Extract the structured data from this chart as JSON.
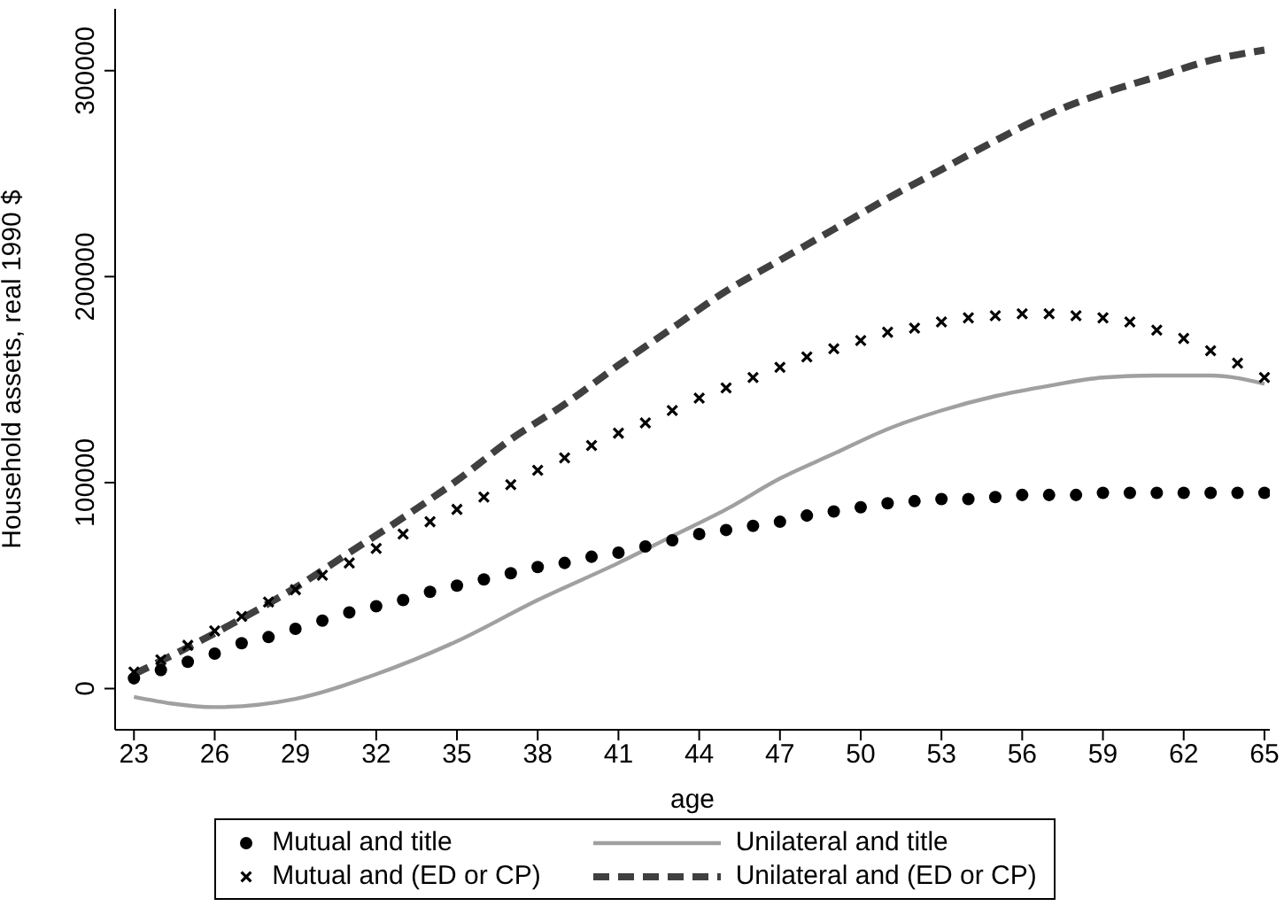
{
  "chart_data": {
    "type": "scatter",
    "xlabel": "age",
    "ylabel": "Household assets, real 1990 $",
    "xlim": [
      22.3,
      65.2
    ],
    "xticks": [
      23,
      26,
      29,
      32,
      35,
      38,
      41,
      44,
      47,
      50,
      53,
      56,
      59,
      62,
      65
    ],
    "ylim": [
      -20000,
      330000
    ],
    "yticks": [
      0,
      100000,
      200000,
      300000
    ],
    "grid": false,
    "legend": "bottom",
    "series": [
      {
        "name": "Mutual and title",
        "marker": "circle",
        "color": "#000000",
        "x": [
          23,
          24,
          25,
          26,
          27,
          28,
          29,
          30,
          31,
          32,
          33,
          34,
          35,
          36,
          37,
          38,
          39,
          40,
          41,
          42,
          43,
          44,
          45,
          46,
          47,
          48,
          49,
          50,
          51,
          52,
          53,
          54,
          55,
          56,
          57,
          58,
          59,
          60,
          61,
          62,
          63,
          64,
          65
        ],
        "values": [
          5000,
          9000,
          13000,
          17000,
          22000,
          25000,
          29000,
          33000,
          37000,
          40000,
          43000,
          47000,
          50000,
          53000,
          56000,
          59000,
          61000,
          64000,
          66000,
          69000,
          72000,
          75000,
          77000,
          79000,
          81000,
          84000,
          86000,
          88000,
          90000,
          91000,
          92000,
          92000,
          93000,
          94000,
          94000,
          94000,
          95000,
          95000,
          95000,
          95000,
          95000,
          95000,
          95000
        ]
      },
      {
        "name": "Mutual and (ED or CP)",
        "marker": "cross",
        "color": "#000000",
        "x": [
          23,
          24,
          25,
          26,
          27,
          28,
          29,
          30,
          31,
          32,
          33,
          34,
          35,
          36,
          37,
          38,
          39,
          40,
          41,
          42,
          43,
          44,
          45,
          46,
          47,
          48,
          49,
          50,
          51,
          52,
          53,
          54,
          55,
          56,
          57,
          58,
          59,
          60,
          61,
          62,
          63,
          64,
          65
        ],
        "values": [
          8000,
          14000,
          21000,
          28000,
          35000,
          42000,
          48000,
          55000,
          61000,
          68000,
          75000,
          81000,
          87000,
          93000,
          99000,
          106000,
          112000,
          118000,
          124000,
          129000,
          135000,
          141000,
          146000,
          151000,
          156000,
          161000,
          165000,
          169000,
          173000,
          175000,
          178000,
          180000,
          181000,
          182000,
          182000,
          181000,
          180000,
          178000,
          174000,
          170000,
          164000,
          158000,
          151000
        ]
      },
      {
        "name": "Unilateral and title",
        "type": "line",
        "marker": "none",
        "line_style": "solid",
        "color": "#a0a0a0",
        "x": [
          23,
          26,
          29,
          32,
          35,
          38,
          41,
          43,
          45,
          47,
          49,
          51,
          53,
          55,
          57,
          59,
          61,
          63,
          65
        ],
        "values": [
          -4000,
          -9000,
          -5000,
          7000,
          23000,
          43000,
          61000,
          74000,
          87000,
          102000,
          114000,
          126000,
          135000,
          142000,
          147000,
          151000,
          152000,
          152000,
          148000
        ]
      },
      {
        "name": "Unilateral and (ED or CP)",
        "type": "line",
        "marker": "none",
        "line_style": "dashed",
        "color": "#404040",
        "x": [
          23,
          25,
          27,
          29,
          31,
          33,
          35,
          37,
          39,
          41,
          43,
          45,
          47,
          49,
          51,
          53,
          55,
          57,
          59,
          61,
          63,
          65
        ],
        "values": [
          7000,
          20000,
          34000,
          49000,
          66000,
          83000,
          101000,
          121000,
          138000,
          157000,
          175000,
          193000,
          208000,
          223000,
          238000,
          252000,
          266000,
          279000,
          289000,
          297000,
          305000,
          310000
        ]
      }
    ]
  }
}
